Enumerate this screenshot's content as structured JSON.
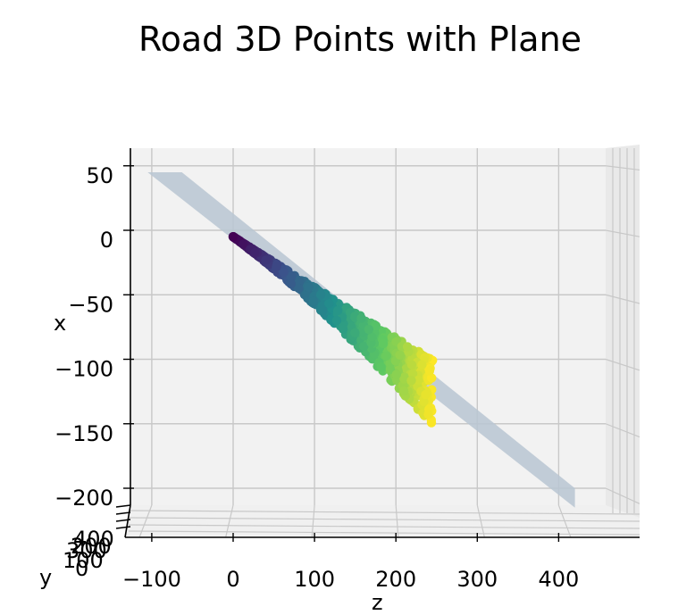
{
  "chart_data": {
    "type": "scatter",
    "title": "Road 3D Points with Plane",
    "xlabel": "x",
    "ylabel": "y",
    "zlabel": "z",
    "x_ticks": [
      "50",
      "0",
      "−50",
      "−100",
      "−150",
      "−200"
    ],
    "y_ticks": [
      "400",
      "300",
      "200",
      "100",
      "0"
    ],
    "z_ticks": [
      "−100",
      "0",
      "100",
      "200",
      "300",
      "400"
    ],
    "x_tick_values": [
      50,
      0,
      -50,
      -100,
      -150,
      -200
    ],
    "z_tick_values": [
      -100,
      0,
      100,
      200,
      300,
      400
    ],
    "xlim": [
      -200,
      60
    ],
    "zlim": [
      -130,
      490
    ],
    "colormap": "viridis",
    "plane_color": "#b8c6d2",
    "grid": true,
    "point_cloud": {
      "z_range": [
        0,
        245
      ],
      "x_upper_start": -5,
      "x_upper_slope": -0.39,
      "x_lower_start": -5,
      "x_lower_slope": -0.6
    },
    "plane": {
      "corners_zx": [
        [
          -105,
          45
        ],
        [
          -63,
          45
        ],
        [
          420,
          -200
        ],
        [
          420,
          -215
        ]
      ]
    }
  }
}
